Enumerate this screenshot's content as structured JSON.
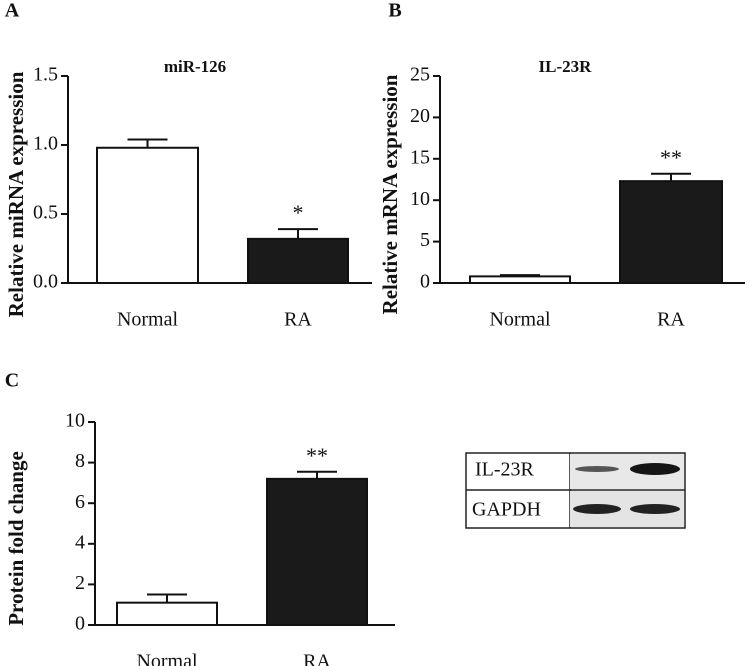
{
  "chart_data": [
    {
      "type": "bar",
      "panel": "A",
      "title": "miR-126",
      "y_label": "Relative miRNA expression",
      "categories": [
        "Normal",
        "RA"
      ],
      "values": [
        0.98,
        0.32
      ],
      "errors": [
        0.06,
        0.07
      ],
      "significance": [
        null,
        "*"
      ],
      "colors": [
        "#ffffff",
        "#1a1a1a"
      ],
      "ylim": [
        0,
        1.5
      ],
      "yticks": [
        {
          "value": 0,
          "label": "0.0"
        },
        {
          "value": 0.5,
          "label": "0.5"
        },
        {
          "value": 1,
          "label": "1.0"
        },
        {
          "value": 1.5,
          "label": "1.5"
        }
      ]
    },
    {
      "type": "bar",
      "panel": "B",
      "title": "IL-23R",
      "y_label": "Relative mRNA expression",
      "categories": [
        "Normal",
        "RA"
      ],
      "values": [
        0.8,
        12.3
      ],
      "errors": [
        0.15,
        0.9
      ],
      "significance": [
        null,
        "**"
      ],
      "colors": [
        "#ffffff",
        "#1a1a1a"
      ],
      "ylim": [
        0,
        25
      ],
      "yticks": [
        0,
        5,
        10,
        15,
        20,
        25
      ]
    },
    {
      "type": "bar",
      "panel": "C",
      "y_label": "Protein fold change",
      "categories": [
        "Normal",
        "RA"
      ],
      "values": [
        1.1,
        7.2
      ],
      "errors": [
        0.4,
        0.35
      ],
      "significance": [
        null,
        "**"
      ],
      "colors": [
        "#ffffff",
        "#1a1a1a"
      ],
      "ylim": [
        0,
        10
      ],
      "yticks": [
        0,
        2,
        4,
        6,
        8,
        10
      ]
    }
  ],
  "blot": {
    "labels": [
      "IL-23R",
      "GAPDH"
    ]
  }
}
